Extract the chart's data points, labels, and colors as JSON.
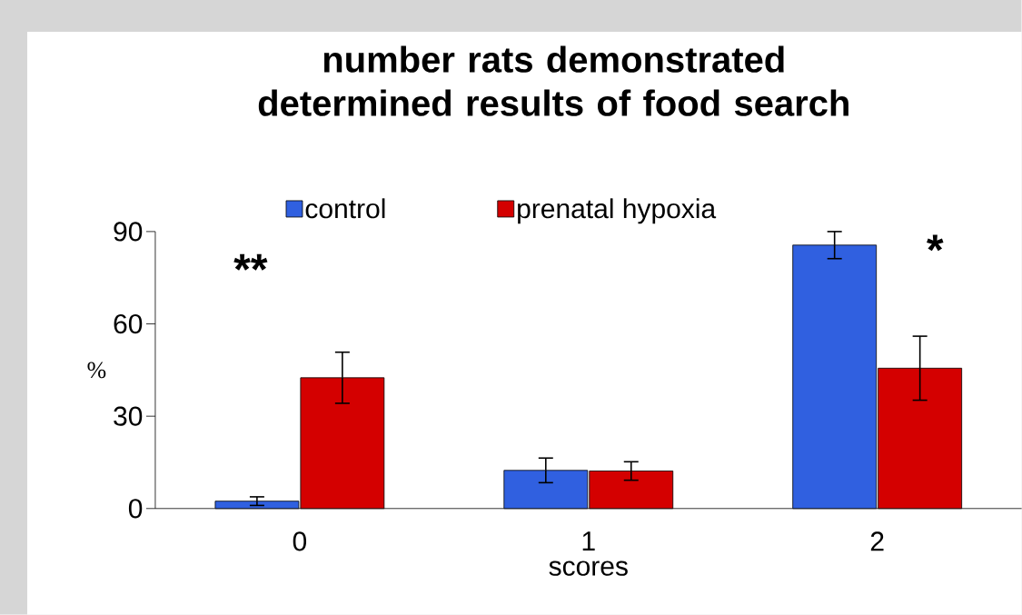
{
  "chart_data": {
    "type": "bar",
    "title": "number rats demonstrated determined results of food search",
    "xlabel": "scores",
    "ylabel": "%",
    "categories": [
      "0",
      "1",
      "2"
    ],
    "series": [
      {
        "name": "control",
        "color": "#3060e0",
        "values": [
          2.4,
          12.4,
          85.6
        ],
        "errors": [
          1.4,
          4,
          4.4
        ]
      },
      {
        "name": "prenatal hypoxia",
        "color": "#d40000",
        "values": [
          42.5,
          12.2,
          45.6
        ],
        "errors": [
          8.3,
          3,
          10.4
        ]
      }
    ],
    "ylim": [
      0,
      90
    ],
    "yticks": [
      0,
      30,
      60,
      90
    ],
    "legend": "top",
    "grid": false,
    "annotations": [
      "**",
      "*"
    ]
  }
}
